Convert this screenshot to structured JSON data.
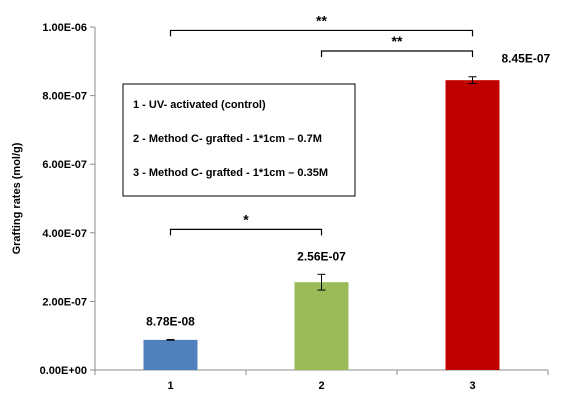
{
  "chart_data": {
    "type": "bar",
    "categories": [
      "1",
      "2",
      "3"
    ],
    "values": [
      8.78e-08,
      2.56e-07,
      8.45e-07
    ],
    "errors": [
      1e-09,
      2.3e-08,
      1e-08
    ],
    "data_labels": [
      "8.78E-08",
      "2.56E-07",
      "8.45E-07"
    ],
    "bar_colors": [
      "#4f81bd",
      "#9bbb59",
      "#c00000"
    ],
    "title": "",
    "xlabel": "",
    "ylabel": "Grafting rates (mol/g)",
    "ylim": [
      0,
      1e-06
    ],
    "yticks": [
      0,
      2e-07,
      4e-07,
      6e-07,
      8e-07,
      1e-06
    ],
    "ytick_labels": [
      "0.00E+00",
      "2.00E-07",
      "4.00E-07",
      "6.00E-07",
      "8.00E-07",
      "1.00E-06"
    ],
    "grid": false,
    "legend_placement": "upper-left",
    "legend": [
      "1 - UV- activated (control)",
      "2 - Method C- grafted - 1*1cm – 0.7M",
      "3 - Method C- grafted - 1*1cm – 0.35M"
    ],
    "significance": [
      {
        "from": 1,
        "to": 2,
        "label": "*",
        "bracket_value": 4.1e-07
      },
      {
        "from": 2,
        "to": 3,
        "label": "**",
        "bracket_value": 9.3e-07
      },
      {
        "from": 1,
        "to": 3,
        "label": "**",
        "bracket_value": 9.9e-07
      }
    ]
  }
}
